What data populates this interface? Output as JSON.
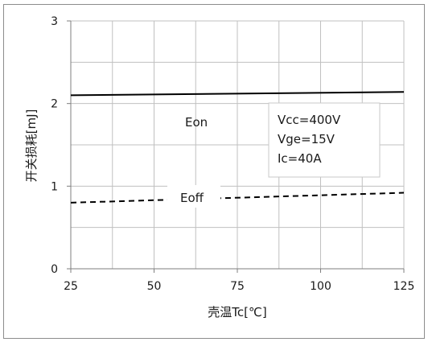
{
  "chart_data": {
    "type": "line",
    "title": "",
    "xlabel": "壳温Tc[℃]",
    "ylabel": "开关损耗[mJ]",
    "xlim": [
      25,
      125
    ],
    "ylim": [
      0,
      3
    ],
    "xticks": [
      25,
      50,
      75,
      100,
      125
    ],
    "yticks": [
      0,
      1,
      2,
      3
    ],
    "x_minor_step": 12.5,
    "y_minor_step": 0.5,
    "grid": true,
    "series": [
      {
        "name": "Eon",
        "style": "solid",
        "color": "#000000",
        "x": [
          25,
          125
        ],
        "y": [
          2.1,
          2.14
        ]
      },
      {
        "name": "Eoff",
        "style": "dashed",
        "color": "#000000",
        "x": [
          25,
          125
        ],
        "y": [
          0.8,
          0.92
        ]
      }
    ],
    "conditions": [
      "Vcc=400V",
      "Vge=15V",
      "Ic=40A"
    ]
  }
}
